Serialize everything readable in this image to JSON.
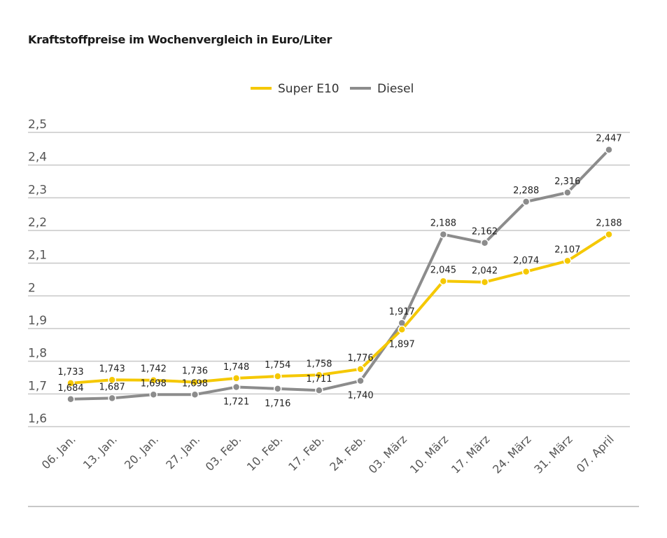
{
  "chart_data": {
    "type": "line",
    "title": "Kraftstoffpreise im Wochenvergleich in Euro/Liter",
    "xlabel": "",
    "ylabel": "",
    "ylim": [
      1.6,
      2.5
    ],
    "yticks": [
      1.6,
      1.7,
      1.8,
      1.9,
      2.0,
      2.1,
      2.2,
      2.3,
      2.4,
      2.5
    ],
    "ytick_labels": [
      "1,6",
      "1,7",
      "1,8",
      "1,9",
      "2",
      "2,1",
      "2,2",
      "2,3",
      "2,4",
      "2,5"
    ],
    "grid": true,
    "legend_placement": "top-center",
    "categories": [
      "06. Jan.",
      "13. Jan.",
      "20. Jan.",
      "27. Jan.",
      "03. Feb.",
      "10. Feb.",
      "17. Feb.",
      "24. Feb.",
      "03. März",
      "10. März",
      "17. März",
      "24. März",
      "31. März",
      "07. April"
    ],
    "series": [
      {
        "name": "Super E10",
        "color": "#f5c800",
        "values": [
          1.733,
          1.743,
          1.742,
          1.736,
          1.748,
          1.754,
          1.758,
          1.776,
          1.897,
          2.045,
          2.042,
          2.074,
          2.107,
          2.188
        ],
        "labels": [
          "1,733",
          "1,743",
          "1,742",
          "1,736",
          "1,748",
          "1,754",
          "1,758",
          "1,776",
          "1,897",
          "2,045",
          "2,042",
          "2,074",
          "2,107",
          "2,188"
        ]
      },
      {
        "name": "Diesel",
        "color": "#8c8c8c",
        "values": [
          1.684,
          1.687,
          1.698,
          1.698,
          1.721,
          1.716,
          1.711,
          1.74,
          1.917,
          2.188,
          2.162,
          2.288,
          2.316,
          2.447
        ],
        "labels": [
          "1,684",
          "1,687",
          "1,698",
          "1,698",
          "1,721",
          "1,716",
          "1,711",
          "1,740",
          "1,917",
          "2,188",
          "2,162",
          "2,288",
          "2,316",
          "2,447"
        ]
      }
    ]
  }
}
